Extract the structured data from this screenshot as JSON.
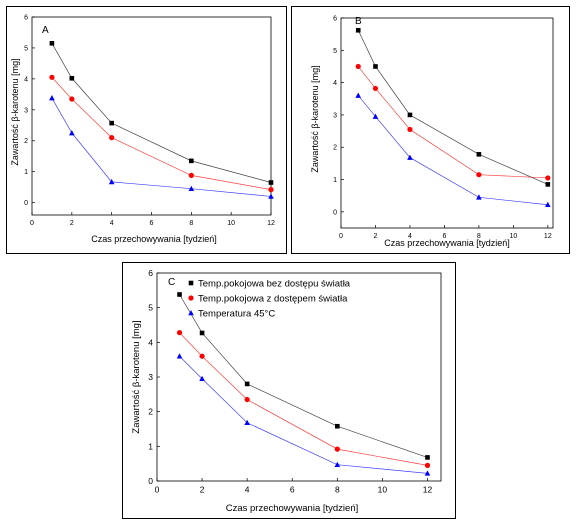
{
  "chart_data": [
    {
      "type": "line",
      "panel_label": "A",
      "xlabel": "Czas przechowywania [tydzień]",
      "ylabel": "Zawartość β-karotenu [mg]",
      "xlim": [
        0,
        12
      ],
      "ylim": [
        -0.4,
        6
      ],
      "x_ticks": [
        0,
        2,
        4,
        6,
        8,
        10,
        12
      ],
      "y_ticks": [
        0,
        1,
        2,
        3,
        4,
        5,
        6
      ],
      "x": [
        1,
        2,
        4,
        8,
        12
      ],
      "series": [
        {
          "values": [
            5.15,
            4.02,
            2.57,
            1.35,
            0.65
          ],
          "color": "#000000",
          "marker": "square"
        },
        {
          "values": [
            4.05,
            3.35,
            2.1,
            0.88,
            0.42
          ],
          "color": "#ff0000",
          "marker": "circle"
        },
        {
          "values": [
            3.38,
            2.25,
            0.67,
            0.45,
            0.2
          ],
          "color": "#0000ff",
          "marker": "triangle"
        }
      ],
      "grid": false
    },
    {
      "type": "line",
      "panel_label": "B",
      "xlabel": "Czas przechowywania [tydzień]",
      "ylabel": "Zawartość β-karotenu [mg]",
      "xlim": [
        0,
        12.3
      ],
      "ylim": [
        -0.5,
        6
      ],
      "x_ticks": [
        0,
        2,
        4,
        6,
        8,
        10,
        12
      ],
      "y_ticks": [
        0,
        1,
        2,
        3,
        4,
        5,
        6
      ],
      "x": [
        1,
        2,
        4,
        8,
        12
      ],
      "series": [
        {
          "values": [
            5.62,
            4.5,
            3.0,
            1.78,
            0.85
          ],
          "color": "#000000",
          "marker": "square"
        },
        {
          "values": [
            4.5,
            3.82,
            2.55,
            1.15,
            1.05
          ],
          "color": "#ff0000",
          "marker": "circle"
        },
        {
          "values": [
            3.6,
            2.95,
            1.68,
            0.45,
            0.22
          ],
          "color": "#0000ff",
          "marker": "triangle"
        }
      ],
      "grid": false
    },
    {
      "type": "line",
      "panel_label": "C",
      "xlabel": "Czas przechowywania [tydzień]",
      "ylabel": "Zawartość β-karotenu [mg]",
      "xlim": [
        0,
        12.6
      ],
      "ylim": [
        0,
        6
      ],
      "x_ticks": [
        0,
        2,
        4,
        6,
        8,
        10,
        12
      ],
      "y_ticks": [
        0,
        1,
        2,
        3,
        4,
        5,
        6
      ],
      "x": [
        1,
        2,
        4,
        8,
        12
      ],
      "series": [
        {
          "name": "Temp.pokojowa bez dostępu światła",
          "values": [
            5.38,
            4.27,
            2.8,
            1.58,
            0.68
          ],
          "color": "#000000",
          "marker": "square"
        },
        {
          "name": "Temp.pokojowa z dostępem światła",
          "values": [
            4.28,
            3.6,
            2.35,
            0.92,
            0.45
          ],
          "color": "#ff0000",
          "marker": "circle"
        },
        {
          "name": "Temperatura 45°C",
          "values": [
            3.6,
            2.95,
            1.68,
            0.47,
            0.22
          ],
          "color": "#0000ff",
          "marker": "triangle"
        }
      ],
      "legend": "top-right",
      "grid": false
    }
  ]
}
